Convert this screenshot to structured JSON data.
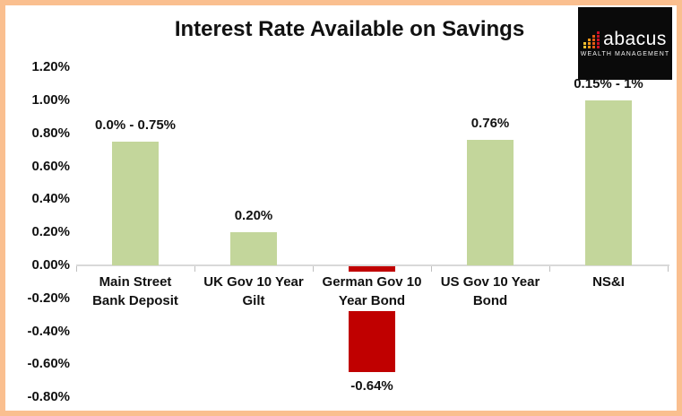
{
  "header": {
    "title": "Interest Rate Available on Savings",
    "logo": {
      "brand": "abacus",
      "tagline": "WEALTH MANAGEMENT",
      "background": "#0a0a0a",
      "icon_colors": [
        "#F5C132",
        "#F09819",
        "#E55B13",
        "#CE1126"
      ],
      "icon_column_squares": [
        2,
        3,
        4,
        5
      ]
    }
  },
  "colors": {
    "frame_border": "#FABF8F",
    "background": "#FFFFFF",
    "positive_bar": "#C3D69B",
    "negative_bar": "#C00000",
    "axis_line": "#D9D9D9",
    "tick_mark": "#BFBFBF",
    "text": "#111111"
  },
  "chart_data": {
    "type": "bar",
    "title": "Interest Rate Available on Savings",
    "categories": [
      "Main Street Bank Deposit",
      "UK Gov 10 Year Gilt",
      "German Gov 10 Year Bond",
      "US Gov 10 Year Bond",
      "NS&I"
    ],
    "category_lines": [
      [
        "Main Street",
        "Bank Deposit"
      ],
      [
        "UK Gov 10 Year",
        "Gilt"
      ],
      [
        "German Gov 10",
        "Year Bond"
      ],
      [
        "US Gov 10 Year",
        "Bond"
      ],
      [
        "NS&I"
      ]
    ],
    "values": [
      0.75,
      0.2,
      -0.64,
      0.76,
      1.0
    ],
    "data_labels": [
      "0.0% - 0.75%",
      "0.20%",
      "-0.64%",
      "0.76%",
      "0.15% - 1%"
    ],
    "ylabel": "",
    "xlabel": "",
    "ylim": [
      -0.8,
      1.2
    ],
    "ytick_step": 0.2,
    "yticks": [
      "1.20%",
      "1.00%",
      "0.80%",
      "0.60%",
      "0.40%",
      "0.20%",
      "0.00%",
      "-0.20%",
      "-0.40%",
      "-0.60%",
      "-0.80%"
    ],
    "grid": false,
    "legend": false
  }
}
